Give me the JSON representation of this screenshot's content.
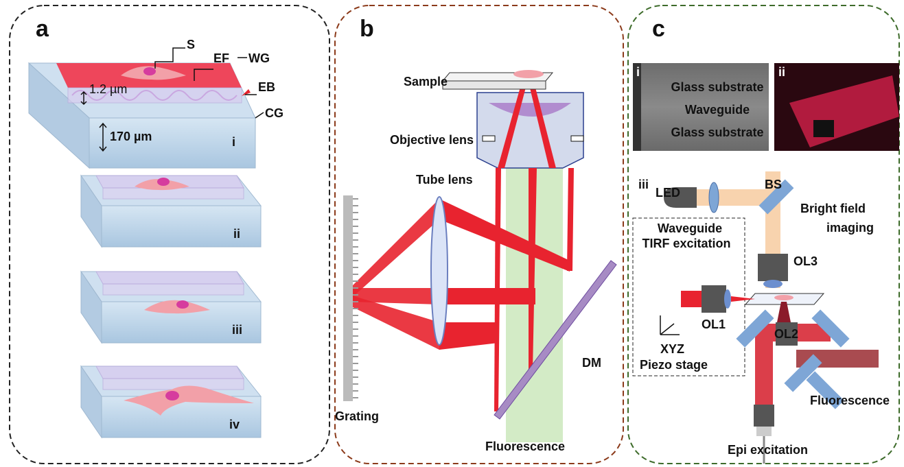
{
  "panel_a": {
    "label": "a",
    "annotations": {
      "s": "S",
      "ef": "EF",
      "wg": "WG",
      "eb": "EB",
      "wg_thickness": "1.2 µm",
      "cg": "CG",
      "cg_thickness": "170 µm"
    },
    "subpanels": [
      "i",
      "ii",
      "iii",
      "iv"
    ]
  },
  "panel_b": {
    "label": "b",
    "sample": "Sample",
    "objective_lens": "Objective lens",
    "tube_lens": "Tube lens",
    "grating": "Grating",
    "dm": "DM",
    "fluorescence": "Fluorescence"
  },
  "panel_c": {
    "label": "c",
    "inset_i": {
      "tag": "i",
      "layers": [
        "Glass substrate",
        "Waveguide",
        "Glass substrate"
      ]
    },
    "inset_ii": {
      "tag": "ii"
    },
    "setup": {
      "tag": "iii",
      "led": "LED",
      "bs": "BS",
      "bright_field": [
        "Bright field",
        "imaging"
      ],
      "waveguide_tirf": [
        "Waveguide",
        "TIRF excitation"
      ],
      "ol3": "OL3",
      "ol1": "OL1",
      "ol2": "OL2",
      "xyz": "XYZ",
      "piezo_stage": "Piezo stage",
      "fluorescence": "Fluorescence",
      "epi_excitation": "Epi excitation"
    }
  }
}
